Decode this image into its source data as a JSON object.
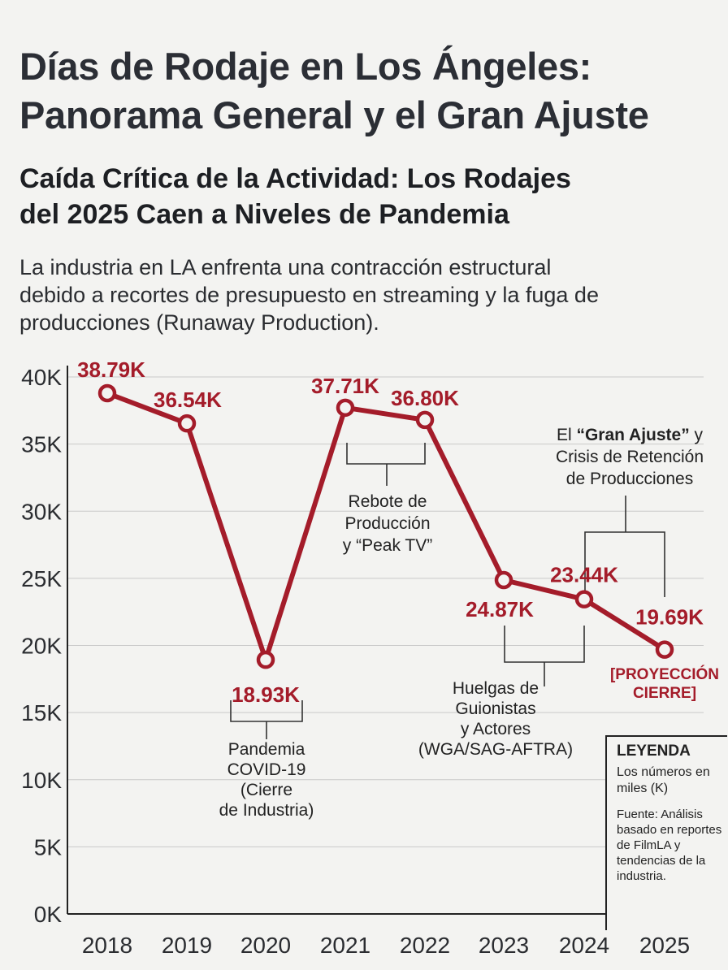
{
  "header": {
    "title_line1": "Días de Rodaje en Los Ángeles:",
    "title_line2": "Panorama General y el Gran Ajuste",
    "subtitle_line1": "Caída Crítica de la Actividad: Los Rodajes",
    "subtitle_line2": "del 2025 Caen a Niveles de Pandemia",
    "desc_line1": "La industria en LA enfrenta una contracción estructural",
    "desc_line2": "debido a recortes de presupuesto en streaming y la fuga de",
    "desc_line3": "producciones (Runaway Production)."
  },
  "legend": {
    "title": "LEYENDA",
    "units": "Los números en miles (K)",
    "source": "Fuente: Análisis basado en reportes de FilmLA y tendencias de la industria."
  },
  "chart_data": {
    "type": "line",
    "categories": [
      "2018",
      "2019",
      "2020",
      "2021",
      "2022",
      "2023",
      "2024",
      "2025"
    ],
    "values": [
      38.79,
      36.54,
      18.93,
      37.71,
      36.8,
      24.87,
      23.44,
      19.69
    ],
    "data_labels": [
      "38.79K",
      "36.54K",
      "18.93K",
      "37.71K",
      "36.80K",
      "24.87K",
      "23.44K",
      "19.69K"
    ],
    "yticks": [
      "0K",
      "5K",
      "10K",
      "15K",
      "20K",
      "25K",
      "30K",
      "35K",
      "40K"
    ],
    "ylim": [
      0,
      40
    ],
    "grid": true,
    "line_color": "#a41c2a",
    "projection_note": [
      "[PROYECCIÓN",
      "CIERRE]"
    ],
    "annotations": [
      {
        "name": "covid",
        "lines": [
          "Pandemia",
          "COVID-19",
          "(Cierre",
          "de Industria)"
        ]
      },
      {
        "name": "peak-tv",
        "lines": [
          "Rebote de",
          "Producción",
          "y “Peak TV”"
        ]
      },
      {
        "name": "strikes",
        "lines": [
          "Huelgas de",
          "Guionistas",
          "y Actores",
          "(WGA/SAG-AFTRA)"
        ]
      },
      {
        "name": "gran-ajuste",
        "lines_rich": [
          [
            {
              "t": "El ",
              "b": false
            },
            {
              "t": "“Gran Ajuste”",
              "b": true
            },
            {
              "t": " y",
              "b": false
            }
          ],
          [
            {
              "t": "Crisis de Retención",
              "b": false
            }
          ],
          [
            {
              "t": "de Producciones",
              "b": false
            }
          ]
        ]
      }
    ]
  }
}
